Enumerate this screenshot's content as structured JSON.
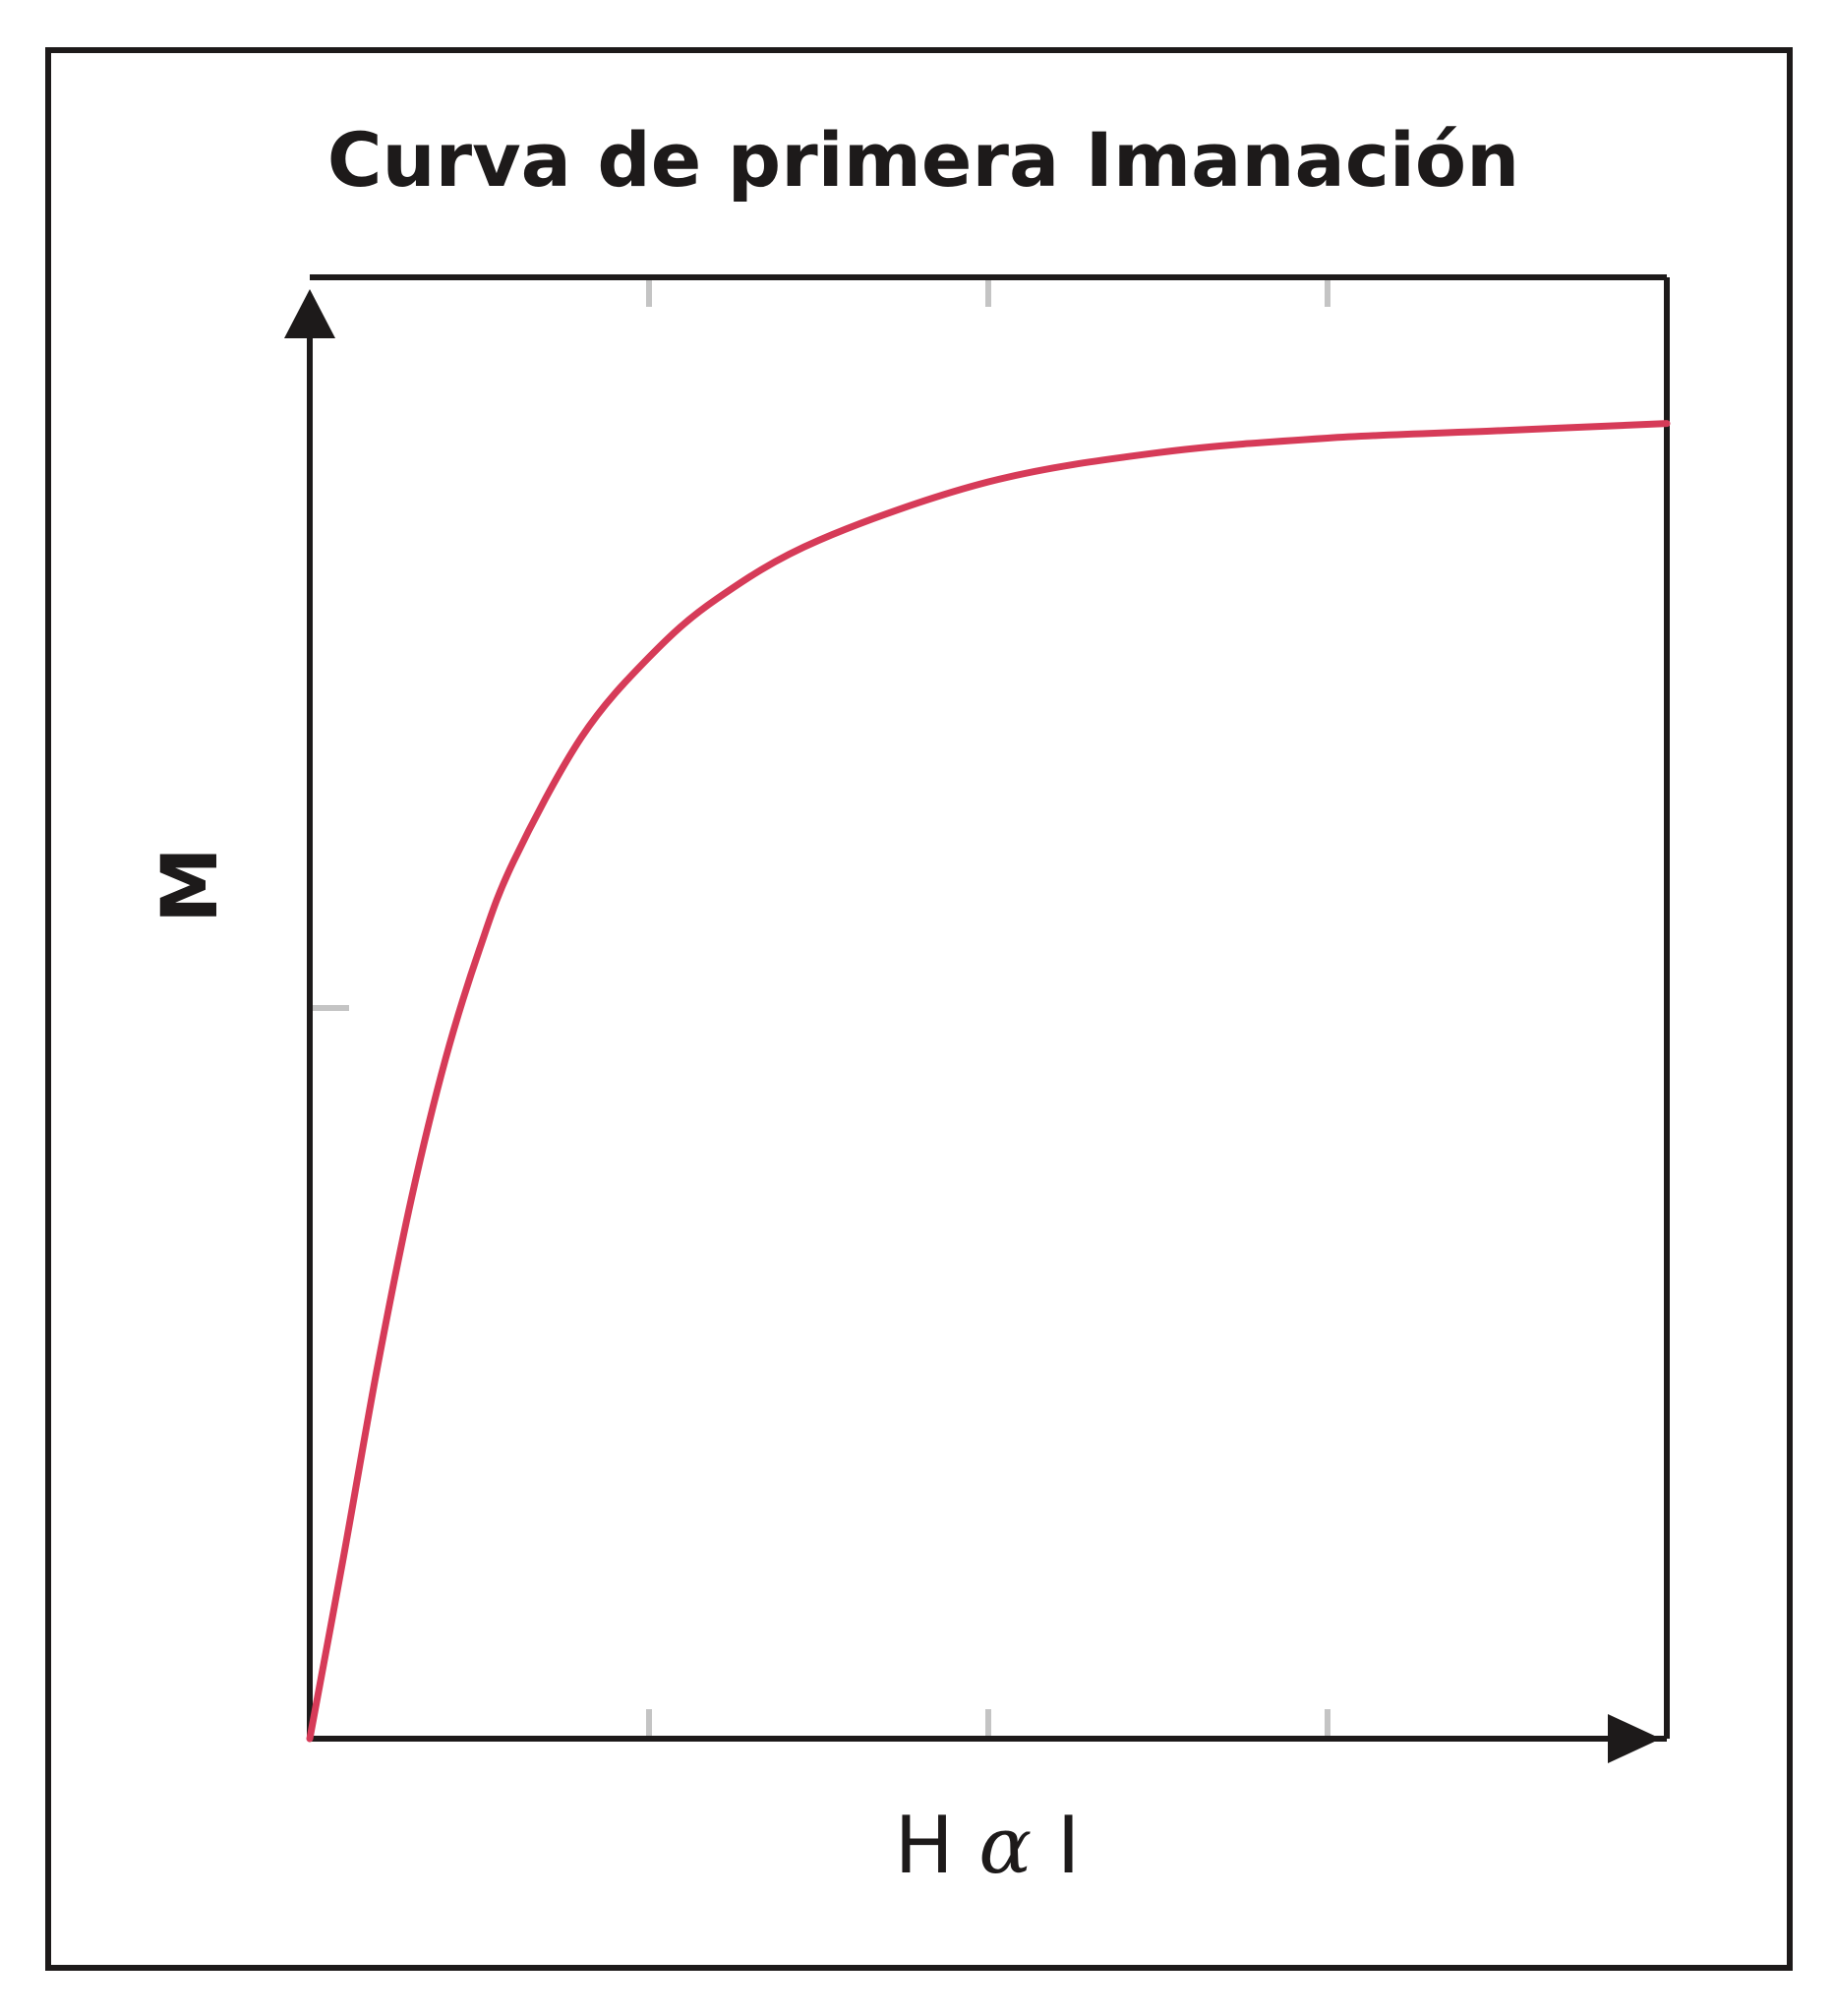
{
  "chart_data": {
    "type": "line",
    "title": "Curva de primera Imanación",
    "ylabel": "M",
    "xlabel_parts": [
      "H",
      "α",
      "I"
    ],
    "xlim": [
      0,
      4
    ],
    "ylim": [
      0,
      2
    ],
    "x_ticks": [
      1,
      2,
      3,
      4
    ],
    "y_ticks": [
      1
    ],
    "grid": false,
    "series": [
      {
        "color": "#d63b58",
        "x": [
          0,
          0.1,
          0.2,
          0.3,
          0.4,
          0.5,
          0.6,
          0.8,
          1.0,
          1.2,
          1.5,
          2.0,
          2.5,
          3.0,
          3.5,
          4.0
        ],
        "y": [
          0,
          0.25,
          0.51,
          0.74,
          0.93,
          1.08,
          1.2,
          1.37,
          1.48,
          1.56,
          1.64,
          1.72,
          1.76,
          1.78,
          1.79,
          1.8
        ]
      }
    ],
    "colors": {
      "axis": "#1d1a1a",
      "tick": "#c4c4c4",
      "line": "#d63b58"
    }
  }
}
